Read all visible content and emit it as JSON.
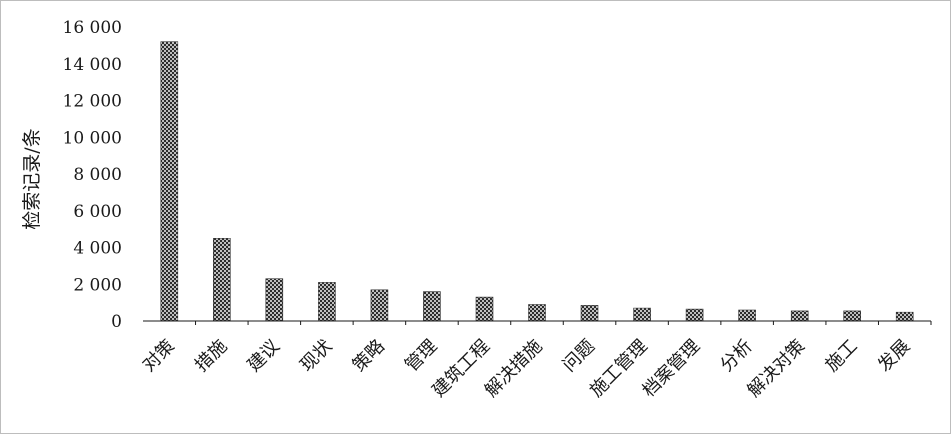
{
  "chart_data": {
    "type": "bar",
    "title": "",
    "xlabel": "",
    "ylabel": "检索记录/条",
    "ylim": [
      0,
      16000
    ],
    "yticks": [
      0,
      2000,
      4000,
      6000,
      8000,
      10000,
      12000,
      14000,
      16000
    ],
    "ytick_labels": [
      "0",
      "2 000",
      "4 000",
      "6 000",
      "8 000",
      "10 000",
      "12 000",
      "14 000",
      "16 000"
    ],
    "categories": [
      "对策",
      "措施",
      "建议",
      "现状",
      "策略",
      "管理",
      "建筑工程",
      "解决措施",
      "问题",
      "施工管理",
      "档案管理",
      "分析",
      "解决对策",
      "施工",
      "发展"
    ],
    "values": [
      15200,
      4500,
      2300,
      2100,
      1700,
      1600,
      1300,
      900,
      850,
      700,
      650,
      600,
      550,
      550,
      480
    ],
    "bar_pattern": "crosshatch",
    "grid": false,
    "legend": "none"
  }
}
